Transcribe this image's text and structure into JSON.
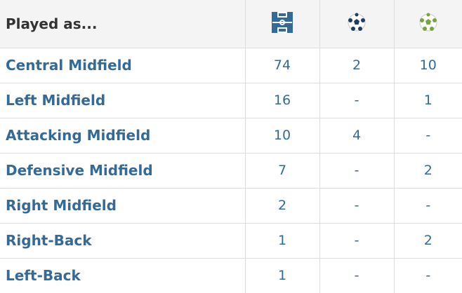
{
  "table": {
    "header": {
      "title": "Played as..."
    },
    "rows": [
      [
        "Central Midfield",
        74,
        2,
        10
      ],
      [
        "Left Midfield",
        16,
        "-",
        1
      ],
      [
        "Attacking Midfield",
        10,
        4,
        "-"
      ],
      [
        "Defensive Midfield",
        7,
        "-",
        2
      ],
      [
        "Right Midfield",
        2,
        "-",
        "-"
      ],
      [
        "Right-Back",
        1,
        "-",
        2
      ],
      [
        "Left-Back",
        1,
        "-",
        "-"
      ]
    ]
  }
}
